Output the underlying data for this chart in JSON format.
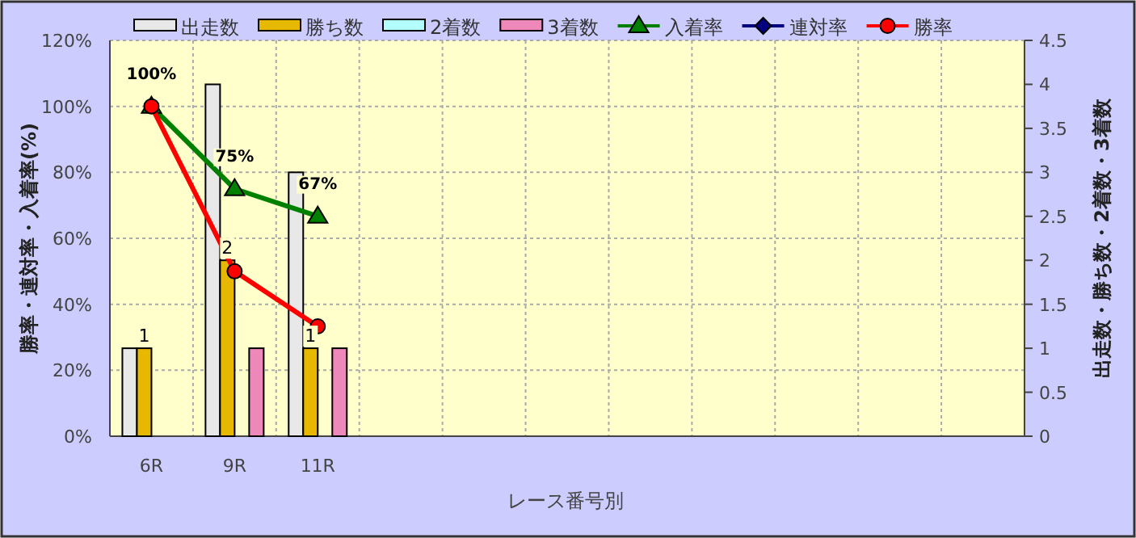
{
  "chart_data": {
    "type": "bar",
    "categories": [
      "6R",
      "9R",
      "11R",
      null,
      null,
      null,
      null,
      null,
      null,
      null,
      null
    ],
    "xlabel": "レース番号別",
    "ylabel": "勝率・連対率・入着率(%)",
    "y2label": "出走数・勝ち数・2着数・3着数",
    "ylim": [
      0,
      120
    ],
    "yticks": [
      {
        "value": 0,
        "label": "0%"
      },
      {
        "value": 20,
        "label": "20%"
      },
      {
        "value": 40,
        "label": "40%"
      },
      {
        "value": 60,
        "label": "60%"
      },
      {
        "value": 80,
        "label": "80%"
      },
      {
        "value": 100,
        "label": "100%"
      },
      {
        "value": 120,
        "label": "120%"
      }
    ],
    "y2lim": [
      0,
      4.5
    ],
    "y2ticks": [
      0,
      0.5,
      1,
      1.5,
      2,
      2.5,
      3,
      3.5,
      4,
      4.5
    ],
    "grid": true,
    "legend": "top",
    "series": [
      {
        "name": "出走数",
        "axis": "y2",
        "color": "#e8e8e8",
        "values": [
          1,
          4,
          3,
          null,
          null,
          null,
          null,
          null,
          null,
          null,
          null
        ]
      },
      {
        "name": "勝ち数",
        "axis": "y2",
        "color": "#e6b800",
        "values": [
          1,
          2,
          1,
          null,
          null,
          null,
          null,
          null,
          null,
          null,
          null
        ],
        "value_labels": [
          "1",
          "2",
          "1",
          null,
          null,
          null,
          null,
          null,
          null,
          null,
          null
        ]
      },
      {
        "name": "2着数",
        "axis": "y2",
        "color": "#b3ffff",
        "values": [
          0,
          0,
          0,
          null,
          null,
          null,
          null,
          null,
          null,
          null,
          null
        ]
      },
      {
        "name": "3着数",
        "axis": "y2",
        "color": "#ee88bb",
        "values": [
          0,
          1,
          1,
          null,
          null,
          null,
          null,
          null,
          null,
          null,
          null
        ]
      },
      {
        "name": "入着率",
        "type": "line",
        "marker": "triangle",
        "color": "#008000",
        "values": [
          100,
          75,
          66.7,
          null,
          null,
          null,
          null,
          null,
          null,
          null,
          null
        ],
        "value_labels": [
          "100%",
          "75%",
          "67%",
          null,
          null,
          null,
          null,
          null,
          null,
          null,
          null
        ]
      },
      {
        "name": "連対率",
        "type": "line",
        "marker": "diamond",
        "color": "#000080",
        "values": [
          null,
          null,
          null,
          null,
          null,
          null,
          null,
          null,
          null,
          null,
          null
        ]
      },
      {
        "name": "勝率",
        "type": "line",
        "marker": "circle",
        "color": "#ff0000",
        "values": [
          100,
          50,
          33.3,
          null,
          null,
          null,
          null,
          null,
          null,
          null,
          null
        ]
      }
    ]
  }
}
